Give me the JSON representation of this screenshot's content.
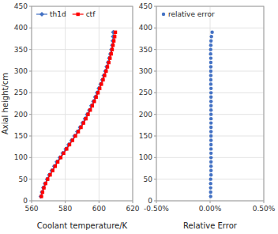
{
  "chart_data": [
    {
      "type": "line",
      "xlabel": "Coolant temperature/K",
      "ylabel": "Axial height/cm",
      "xlim": [
        560,
        620
      ],
      "xticks": [
        560,
        580,
        600,
        620
      ],
      "ylim": [
        0,
        450
      ],
      "yticks": [
        0,
        50,
        100,
        150,
        200,
        250,
        300,
        350,
        400,
        450
      ],
      "grid": true,
      "legend": "upper left",
      "series": [
        {
          "name": "th1d",
          "color": "#4472C4",
          "marker": "diamond",
          "x": [
            565.5,
            566.2,
            567.0,
            568.0,
            569.2,
            570.5,
            572.0,
            573.5,
            575.0,
            576.8,
            578.5,
            580.3,
            582.0,
            583.8,
            585.5,
            587.2,
            588.8,
            590.3,
            591.7,
            593.0,
            594.3,
            595.5,
            596.7,
            597.8,
            598.9,
            599.9,
            601.0,
            602.0,
            602.9,
            603.8,
            604.6,
            605.4,
            606.1,
            606.8,
            607.4,
            607.9,
            608.2,
            608.4,
            608.5
          ],
          "values": [
            10,
            20,
            30,
            40,
            50,
            60,
            70,
            80,
            90,
            100,
            110,
            120,
            130,
            140,
            150,
            160,
            170,
            180,
            190,
            200,
            210,
            220,
            230,
            240,
            250,
            260,
            270,
            280,
            290,
            300,
            310,
            320,
            330,
            340,
            350,
            360,
            370,
            380,
            390
          ]
        },
        {
          "name": "ctf",
          "color": "#FF0000",
          "marker": "square",
          "x": [
            565.8,
            566.5,
            567.3,
            568.3,
            569.5,
            571.0,
            572.5,
            574.0,
            575.5,
            577.3,
            579.0,
            580.8,
            582.5,
            584.3,
            586.0,
            587.7,
            589.3,
            590.8,
            592.2,
            593.5,
            594.8,
            596.0,
            597.2,
            598.3,
            599.4,
            600.4,
            601.4,
            602.4,
            603.3,
            604.2,
            605.0,
            605.8,
            606.5,
            607.2,
            607.8,
            608.3,
            608.8,
            609.3,
            609.7
          ],
          "values": [
            10,
            20,
            30,
            40,
            50,
            60,
            70,
            80,
            90,
            100,
            110,
            120,
            130,
            140,
            150,
            160,
            170,
            180,
            190,
            200,
            210,
            220,
            230,
            240,
            250,
            260,
            270,
            280,
            290,
            300,
            310,
            320,
            330,
            340,
            350,
            360,
            370,
            380,
            390
          ]
        }
      ]
    },
    {
      "type": "scatter",
      "xlabel": "Relative Error",
      "xlim": [
        -0.005,
        0.005
      ],
      "xticks": [
        {
          "value": -0.005,
          "label": "-0.50%"
        },
        {
          "value": 0.0,
          "label": "0.00%"
        },
        {
          "value": 0.005,
          "label": "0.50%"
        }
      ],
      "ylim": [
        0,
        450
      ],
      "yticks": [
        0,
        50,
        100,
        150,
        200,
        250,
        300,
        350,
        400,
        450
      ],
      "grid": true,
      "legend": "upper left",
      "series": [
        {
          "name": "relative error",
          "color": "#4472C4",
          "marker": "circle",
          "x": [
            5.3e-05,
            5.3e-05,
            5.3e-05,
            5.3e-05,
            5.3e-05,
            8.8e-05,
            8.8e-05,
            8.8e-05,
            8.8e-05,
            8.8e-05,
            8.8e-05,
            8.8e-05,
            8.8e-05,
            8.8e-05,
            8.8e-05,
            8.8e-05,
            8.8e-05,
            8.8e-05,
            8.8e-05,
            8.8e-05,
            8.8e-05,
            8.8e-05,
            8.8e-05,
            8.8e-05,
            8.8e-05,
            8.8e-05,
            7e-05,
            7e-05,
            7e-05,
            7e-05,
            7e-05,
            7e-05,
            7e-05,
            5.3e-05,
            5.3e-05,
            7e-05,
            8.8e-05,
            0.000123,
            0.000193
          ],
          "values": [
            10,
            20,
            30,
            40,
            50,
            60,
            70,
            80,
            90,
            100,
            110,
            120,
            130,
            140,
            150,
            160,
            170,
            180,
            190,
            200,
            210,
            220,
            230,
            240,
            250,
            260,
            270,
            280,
            290,
            300,
            310,
            320,
            330,
            340,
            350,
            360,
            370,
            380,
            390
          ]
        }
      ]
    }
  ]
}
